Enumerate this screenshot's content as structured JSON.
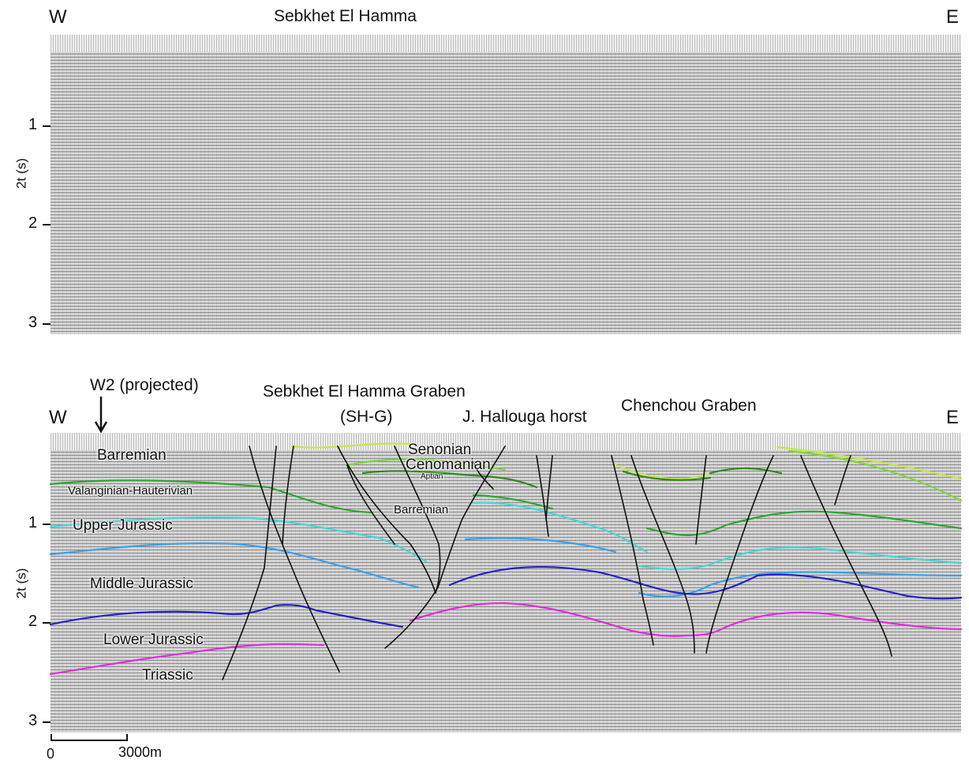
{
  "top_panel": {
    "west": "W",
    "east": "E",
    "title": "Sebkhet El Hamma",
    "y_axis_label": "2t (s)",
    "y_ticks": [
      "1",
      "2",
      "3"
    ]
  },
  "bottom_panel": {
    "west": "W",
    "east": "E",
    "well_label": "W2 (projected)",
    "structures": {
      "graben_1_line1": "Sebkhet El Hamma Graben",
      "graben_1_line2": "(SH-G)",
      "horst": "J. Hallouga horst",
      "graben_2": "Chenchou Graben"
    },
    "y_axis_label": "2t (s)",
    "y_ticks": [
      "1",
      "2",
      "3"
    ],
    "formations": {
      "barremian_w": "Barremian",
      "valanginian": "Valanginian-Hauterivian",
      "upper_jurassic": "Upper Jurassic",
      "middle_jurassic": "Middle Jurassic",
      "lower_jurassic": "Lower Jurassic",
      "triassic": "Triassic",
      "senonian": "Senonian",
      "cenomanian": "Cenomanian",
      "aptian": "Aptian",
      "barremian_graben": "Barremian"
    },
    "horizon_colors": {
      "senonian": "#c8e64a",
      "cenomanian": "#7fd63a",
      "barremian": "#2e8a1e",
      "valanginian": "#2ea52e",
      "upper_jurassic": "#47d6d6",
      "middle_jurassic": "#3aa0e8",
      "lower_jurassic": "#2222c8",
      "triassic": "#e02ed8"
    },
    "fault_color": "#111111"
  },
  "scale_bar": {
    "start": "0",
    "end": "3000m"
  }
}
